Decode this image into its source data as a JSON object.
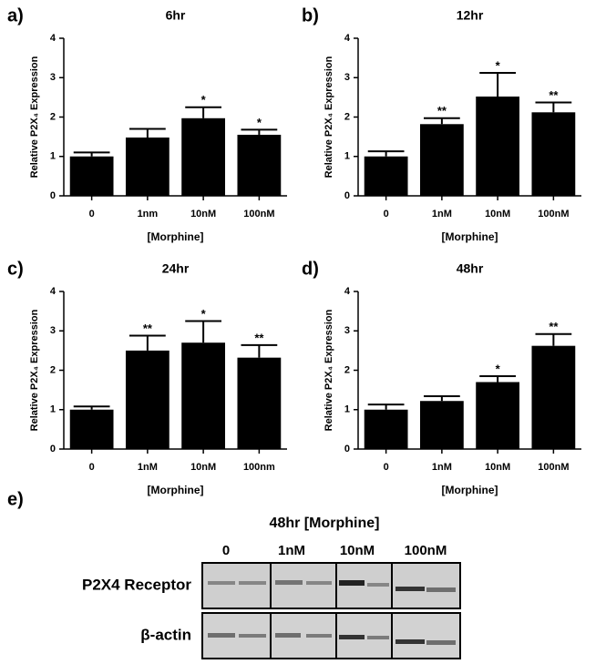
{
  "chart_data": [
    {
      "type": "bar",
      "panel": "a)",
      "title": "6hr",
      "y_label": "Relative P2X₄ Expression",
      "x_label": "[Morphine]",
      "categories": [
        "0",
        "1nm",
        "10nM",
        "100nM"
      ],
      "values": [
        1.0,
        1.48,
        1.97,
        1.55
      ],
      "errors": [
        0.1,
        0.22,
        0.28,
        0.13
      ],
      "annotations": [
        {
          "category": "10nM",
          "text": "*"
        },
        {
          "category": "100nM",
          "text": "*"
        }
      ],
      "color": "#000000",
      "ylim": [
        0,
        4
      ],
      "yticks": [
        0,
        1,
        2,
        3,
        4
      ]
    },
    {
      "type": "bar",
      "panel": "b)",
      "title": "12hr",
      "y_label": "Relative P2X₄ Expression",
      "x_label": "[Morphine]",
      "categories": [
        "0",
        "1nM",
        "10nM",
        "100nM"
      ],
      "values": [
        1.0,
        1.82,
        2.52,
        2.12
      ],
      "errors": [
        0.13,
        0.15,
        0.6,
        0.25
      ],
      "annotations": [
        {
          "category": "1nM",
          "text": "**"
        },
        {
          "category": "10nM",
          "text": "*"
        },
        {
          "category": "100nM",
          "text": "**"
        }
      ],
      "color": "#000000",
      "ylim": [
        0,
        4
      ],
      "yticks": [
        0,
        1,
        2,
        3,
        4
      ]
    },
    {
      "type": "bar",
      "panel": "c)",
      "title": "24hr",
      "y_label": "Relative P2X₄ Expression",
      "x_label": "[Morphine]",
      "categories": [
        "0",
        "1nM",
        "10nM",
        "100nm"
      ],
      "values": [
        1.0,
        2.5,
        2.7,
        2.32
      ],
      "errors": [
        0.08,
        0.38,
        0.55,
        0.32
      ],
      "annotations": [
        {
          "category": "1nM",
          "text": "**"
        },
        {
          "category": "10nM",
          "text": "*"
        },
        {
          "category": "100nm",
          "text": "**"
        }
      ],
      "color": "#000000",
      "ylim": [
        0,
        4
      ],
      "yticks": [
        0,
        1,
        2,
        3,
        4
      ]
    },
    {
      "type": "bar",
      "panel": "d)",
      "title": "48hr",
      "y_label": "Relative P2X₄ Expression",
      "x_label": "[Morphine]",
      "categories": [
        "0",
        "1nM",
        "10nM",
        "100nM"
      ],
      "values": [
        1.0,
        1.22,
        1.7,
        2.62
      ],
      "errors": [
        0.13,
        0.12,
        0.15,
        0.3
      ],
      "annotations": [
        {
          "category": "10nM",
          "text": "*"
        },
        {
          "category": "100nM",
          "text": "**"
        }
      ],
      "color": "#000000",
      "ylim": [
        0,
        4
      ],
      "yticks": [
        0,
        1,
        2,
        3,
        4
      ]
    }
  ],
  "blot": {
    "panel": "e)",
    "title": "48hr [Morphine]",
    "lanes": [
      "0",
      "1nM",
      "10nM",
      "100nM"
    ],
    "rows": [
      "P2X4 Receptor",
      "β-actin"
    ]
  }
}
